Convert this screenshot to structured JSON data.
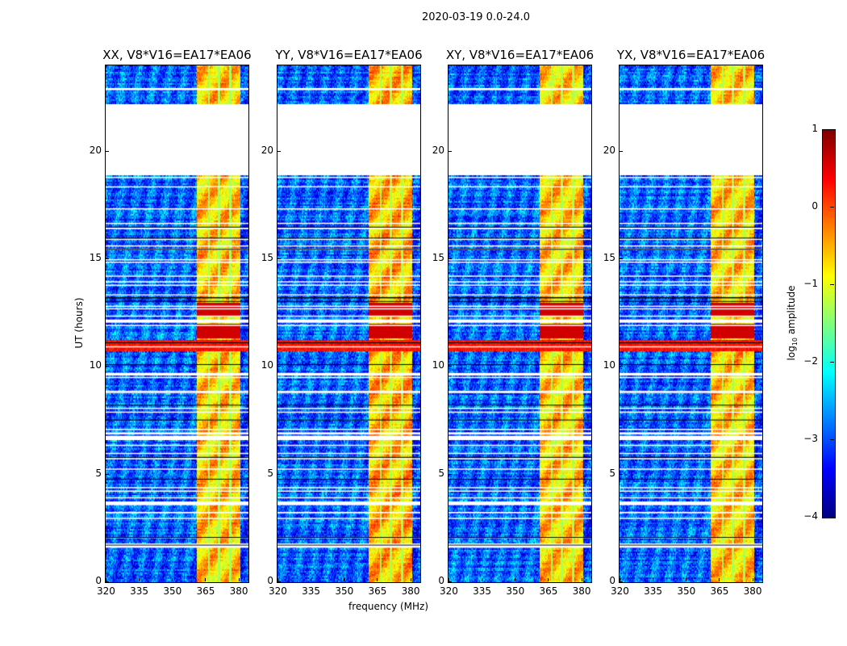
{
  "chart_data": {
    "type": "heatmap",
    "title": "2020-03-19 0.0-24.0",
    "xlabel": "frequency (MHz)",
    "ylabel": "UT (hours)",
    "xlim": [
      320,
      384.5
    ],
    "ylim": [
      0,
      24
    ],
    "xticks": [
      320,
      335,
      350,
      365,
      380
    ],
    "yticks": [
      0,
      5,
      10,
      15,
      20
    ],
    "colormap": "jet",
    "colorbar": {
      "label_main": "log",
      "label_sub": "10",
      "label_rest": " amplitude",
      "range": [
        -4,
        1
      ],
      "ticks": [
        1,
        0,
        -1,
        -2,
        -3,
        -4
      ]
    },
    "panels": [
      {
        "title": "XX, V8*V16=EA17*EA06",
        "band_level": -0.6
      },
      {
        "title": "YY, V8*V16=EA17*EA06",
        "band_level": -0.5
      },
      {
        "title": "XY, V8*V16=EA17*EA06",
        "band_level": -0.6
      },
      {
        "title": "YX, V8*V16=EA17*EA06",
        "band_level": -0.6
      }
    ],
    "background_level": -2.9,
    "rfi_band_mhz": [
      361,
      380.5
    ],
    "band_channel_gaps_mhz": [
      366.5,
      371,
      376
    ],
    "flagged_hours": [
      [
        18.9,
        22.2
      ],
      [
        1.6,
        1.8
      ],
      [
        3.6,
        3.75
      ],
      [
        6.6,
        6.8
      ],
      [
        9.6,
        9.72
      ],
      [
        12.05,
        12.2
      ],
      [
        22.85,
        22.95
      ]
    ],
    "strong_rfi_hours": [
      [
        10.75,
        11.25
      ]
    ],
    "strong_band_hours": [
      [
        11.35,
        12.0
      ],
      [
        12.4,
        13.0
      ]
    ]
  }
}
